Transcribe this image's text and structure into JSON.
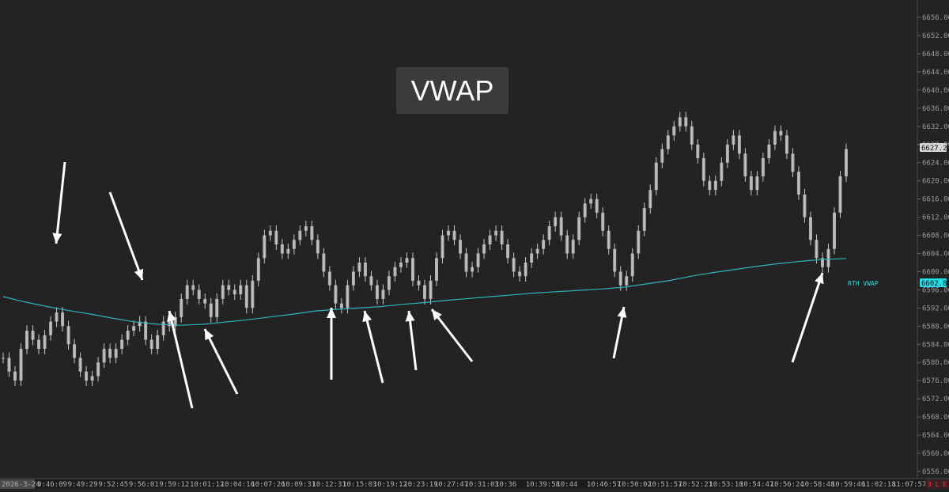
{
  "title": "VWAP",
  "colors": {
    "background": "#232323",
    "candle": "#c8c8c8",
    "vwap": "#2fb3b8",
    "arrow": "#ffffff",
    "vwap_badge": "#20e0e8",
    "price_badge": "#d8d8d8",
    "axis_text": "#9a9a9a",
    "indicator": "#ff3b3b"
  },
  "time_axis": {
    "date_label": "2026-3-24",
    "indicator_text": "3 L E",
    "labels": [
      "9:46:09",
      "9:49:29",
      "9:52:45",
      "9:56:01",
      "9:59:12",
      "10:01:12",
      "10:04:16",
      "10:07:26",
      "10:09:31",
      "10:12:31",
      "10:15:03",
      "10:19:12",
      "10:23:19",
      "10:27:47",
      "10:31:03",
      "10:36",
      "10:39:58",
      "10:44",
      "10:46:57",
      "10:50:02",
      "10:51:57",
      "10:52:21",
      "10:53:10",
      "10:54:47",
      "10:56:24",
      "10:58:48",
      "10:59:46",
      "11:02:18",
      "11:07:57"
    ]
  },
  "price_axis": {
    "ticks": [
      "6656.00",
      "6652.00",
      "6648.00",
      "6644.00",
      "6640.00",
      "6636.00",
      "6632.00",
      "6628.00",
      "6624.00",
      "6620.00",
      "6616.00",
      "6612.00",
      "6608.00",
      "6604.00",
      "6600.00",
      "6596.00",
      "6592.00",
      "6588.00",
      "6584.00",
      "6580.00",
      "6576.00",
      "6572.00",
      "6568.00",
      "6564.00",
      "6560.00",
      "6556.00"
    ],
    "last_price": "6627.25",
    "vwap_price": "6602.88",
    "vwap_label": "RTH VWAP"
  },
  "chart_data": {
    "type": "line",
    "title": "VWAP",
    "x_label_span": [
      "9:46:09",
      "10:59:46"
    ],
    "ylim": [
      6556,
      6656
    ],
    "grid": false,
    "series": [
      {
        "name": "Price",
        "values": [
          6581,
          6578,
          6576,
          6583,
          6587,
          6585,
          6583,
          6586,
          6589,
          6591,
          6588,
          6584,
          6581,
          6578,
          6576,
          6577,
          6580,
          6583,
          6581,
          6583,
          6585,
          6587,
          6588,
          6589,
          6585,
          6583,
          6586,
          6589,
          6588,
          6590,
          6594,
          6597,
          6596,
          6594,
          6593,
          6590,
          6594,
          6597,
          6596,
          6595,
          6597,
          6592,
          6598,
          6603,
          6608,
          6609,
          6606,
          6604,
          6605,
          6607,
          6609,
          6610,
          6607,
          6604,
          6600,
          6597,
          6593,
          6592,
          6597,
          6600,
          6602,
          6599,
          6597,
          6594,
          6596,
          6599,
          6601,
          6602,
          6603,
          6598,
          6597,
          6594,
          6598,
          6603,
          6608,
          6609,
          6607,
          6604,
          6600,
          6601,
          6604,
          6606,
          6608,
          6609,
          6606,
          6603,
          6600,
          6599,
          6602,
          6604,
          6605,
          6607,
          6610,
          6612,
          6608,
          6604,
          6607,
          6612,
          6615,
          6616,
          6613,
          6609,
          6605,
          6600,
          6597,
          6599,
          6604,
          6609,
          6614,
          6618,
          6624,
          6627,
          6630,
          6632,
          6634,
          6632,
          6628,
          6625,
          6620,
          6618,
          6620,
          6624,
          6628,
          6630,
          6626,
          6621,
          6618,
          6621,
          6625,
          6628,
          6631,
          6630,
          6626,
          6622,
          6617,
          6612,
          6607,
          6603,
          6601,
          6605,
          6613,
          6621,
          6627
        ]
      },
      {
        "name": "RTH VWAP",
        "values": [
          6594.5,
          6593.3,
          6592.3,
          6591.4,
          6590.6,
          6589.7,
          6588.9,
          6588.4,
          6588.2,
          6588.4,
          6588.9,
          6589.4,
          6590.0,
          6590.6,
          6591.3,
          6591.7,
          6592.0,
          6592.3,
          6592.8,
          6593.2,
          6593.7,
          6594.1,
          6594.5,
          6594.9,
          6595.3,
          6595.6,
          6595.9,
          6596.2,
          6596.6,
          6597.3,
          6598.0,
          6599.0,
          6599.8,
          6600.5,
          6601.2,
          6601.8,
          6602.3,
          6602.7,
          6602.9
        ]
      }
    ]
  }
}
